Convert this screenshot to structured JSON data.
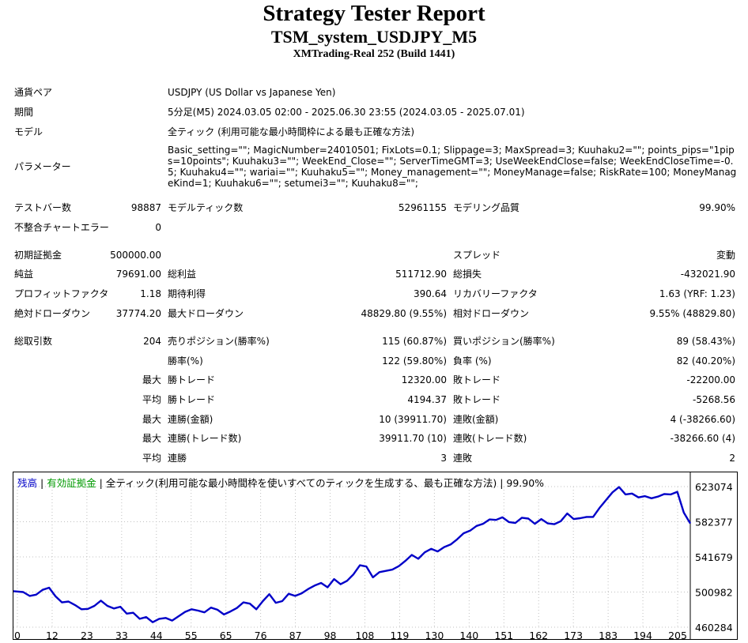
{
  "header": {
    "title": "Strategy Tester Report",
    "subtitle": "TSM_system_USDJPY_M5",
    "server": "XMTrading-Real 252 (Build 1441)"
  },
  "info": {
    "symbol_label": "通貨ペア",
    "symbol": "USDJPY (US Dollar vs Japanese Yen)",
    "period_label": "期間",
    "period": "5分足(M5) 2024.03.05 02:00 - 2025.06.30 23:55 (2024.03.05 - 2025.07.01)",
    "model_label": "モデル",
    "model": "全ティック (利用可能な最小時間枠による最も正確な方法)",
    "params_label": "パラメーター",
    "params": "Basic_setting=\"\"; MagicNumber=24010501; FixLots=0.1; Slippage=3; MaxSpread=3; Kuuhaku2=\"\"; points_pips=\"1pips=10points\"; Kuuhaku3=\"\"; WeekEnd_Close=\"\"; ServerTimeGMT=3; UseWeekEndClose=false; WeekEndCloseTime=-0.5; Kuuhaku4=\"\"; wariai=\"\"; Kuuhaku5=\"\"; Money_management=\"\"; MoneyManage=false; RiskRate=100; MoneyManageKind=1; Kuuhaku6=\"\"; setumei3=\"\"; Kuuhaku8=\"\";"
  },
  "stats": {
    "bars_label": "テストバー数",
    "bars": "98887",
    "ticks_label": "モデルティック数",
    "ticks": "52961155",
    "quality_label": "モデリング品質",
    "quality": "99.90%",
    "mismatch_label": "不整合チャートエラー",
    "mismatch": "0",
    "deposit_label": "初期証拠金",
    "deposit": "500000.00",
    "spread_label": "スプレッド",
    "spread": "変動",
    "net_label": "純益",
    "net": "79691.00",
    "gross_profit_label": "総利益",
    "gross_profit": "511712.90",
    "gross_loss_label": "総損失",
    "gross_loss": "-432021.90",
    "pf_label": "プロフィットファクタ",
    "pf": "1.18",
    "expected_label": "期待利得",
    "expected": "390.64",
    "recovery_label": "リカバリーファクタ",
    "recovery": "1.63 (YRF: 1.23)",
    "abs_dd_label": "絶対ドローダウン",
    "abs_dd": "37774.20",
    "max_dd_label": "最大ドローダウン",
    "max_dd": "48829.80 (9.55%)",
    "rel_dd_label": "相対ドローダウン",
    "rel_dd": "9.55% (48829.80)",
    "trades_label": "総取引数",
    "trades": "204",
    "short_label": "売りポジション(勝率%)",
    "short": "115 (60.87%)",
    "long_label": "買いポジション(勝率%)",
    "long": "89 (58.43%)",
    "win_label": "勝率(%)",
    "win": "122 (59.80%)",
    "loss_label": "負率 (%)",
    "loss": "82 (40.20%)",
    "max_word": "最大",
    "avg_word": "平均",
    "largest_win_label": "勝トレード",
    "largest_win": "12320.00",
    "largest_loss_label": "敗トレード",
    "largest_loss": "-22200.00",
    "avg_win_label": "勝トレード",
    "avg_win": "4194.37",
    "avg_loss_label": "敗トレード",
    "avg_loss": "-5268.56",
    "max_consec_win_label": "連勝(金額)",
    "max_consec_win": "10 (39911.70)",
    "max_consec_loss_label": "連敗(金額)",
    "max_consec_loss": "4 (-38266.60)",
    "max_consec_profit_label": "連勝(トレード数)",
    "max_consec_profit": "39911.70 (10)",
    "max_consec_lossamt_label": "連敗(トレード数)",
    "max_consec_lossamt": "-38266.60 (4)",
    "avg_consec_win_label": "連勝",
    "avg_consec_win": "3",
    "avg_consec_loss_label": "連敗",
    "avg_consec_loss": "2"
  },
  "legend": {
    "balance": "残高",
    "sep1": " | ",
    "equity": "有効証拠金",
    "rest": " | 全ティック(利用可能な最小時間枠を使いすべてのティックを生成する、最も正確な方法) | 99.90%"
  },
  "colors": {
    "balance": "#0000c8",
    "equity": "#00a000"
  },
  "chart_data": {
    "type": "line",
    "x_ticks": [
      "0",
      "12",
      "23",
      "33",
      "44",
      "55",
      "65",
      "76",
      "87",
      "98",
      "108",
      "119",
      "130",
      "140",
      "151",
      "162",
      "173",
      "183",
      "194",
      "205"
    ],
    "y_ticks": [
      "623074",
      "582377",
      "541679",
      "500982",
      "460284"
    ],
    "ylim": [
      460284,
      623074
    ],
    "xlim": [
      0,
      209
    ],
    "series": [
      {
        "name": "残高",
        "x": [
          0,
          3,
          5,
          7,
          9,
          11,
          13,
          15,
          17,
          19,
          21,
          23,
          25,
          27,
          29,
          31,
          33,
          35,
          37,
          39,
          41,
          43,
          45,
          47,
          49,
          51,
          53,
          55,
          57,
          59,
          61,
          63,
          65,
          67,
          69,
          71,
          73,
          75,
          77,
          79,
          81,
          83,
          85,
          87,
          89,
          91,
          93,
          95,
          97,
          99,
          101,
          103,
          105,
          107,
          109,
          111,
          113,
          115,
          117,
          119,
          121,
          123,
          125,
          127,
          129,
          131,
          133,
          135,
          137,
          139,
          141,
          143,
          145,
          147,
          149,
          151,
          153,
          155,
          157,
          159,
          161,
          163,
          165,
          167,
          169,
          171,
          173,
          175,
          177,
          179,
          181,
          183,
          185,
          187,
          189,
          191,
          193,
          195,
          197,
          199,
          201,
          203,
          205,
          207,
          209
        ],
        "values": [
          502000,
          501000,
          496500,
          498000,
          503500,
          506000,
          496000,
          489000,
          490000,
          486000,
          481000,
          481500,
          485000,
          491000,
          485000,
          482000,
          484000,
          476000,
          477000,
          470000,
          472000,
          466000,
          470000,
          471000,
          468000,
          473000,
          478000,
          481000,
          479500,
          477500,
          483000,
          480500,
          475000,
          478500,
          482500,
          489000,
          487500,
          481000,
          490500,
          498500,
          488500,
          490500,
          499000,
          496500,
          499500,
          504500,
          508500,
          511500,
          506500,
          516000,
          510000,
          514000,
          521500,
          532000,
          530500,
          518000,
          524000,
          525500,
          527000,
          531000,
          537000,
          544000,
          539500,
          547000,
          551000,
          548000,
          553000,
          556000,
          562000,
          569000,
          572000,
          577500,
          580000,
          585000,
          584500,
          587500,
          582000,
          581000,
          587000,
          586000,
          580000,
          585500,
          580500,
          579500,
          583000,
          592000,
          585500,
          586500,
          588000,
          588000,
          598500,
          607500,
          616500,
          622500,
          614000,
          615000,
          610500,
          612000,
          609500,
          611500,
          614500,
          614000,
          617000,
          593000,
          580500
        ]
      }
    ]
  }
}
